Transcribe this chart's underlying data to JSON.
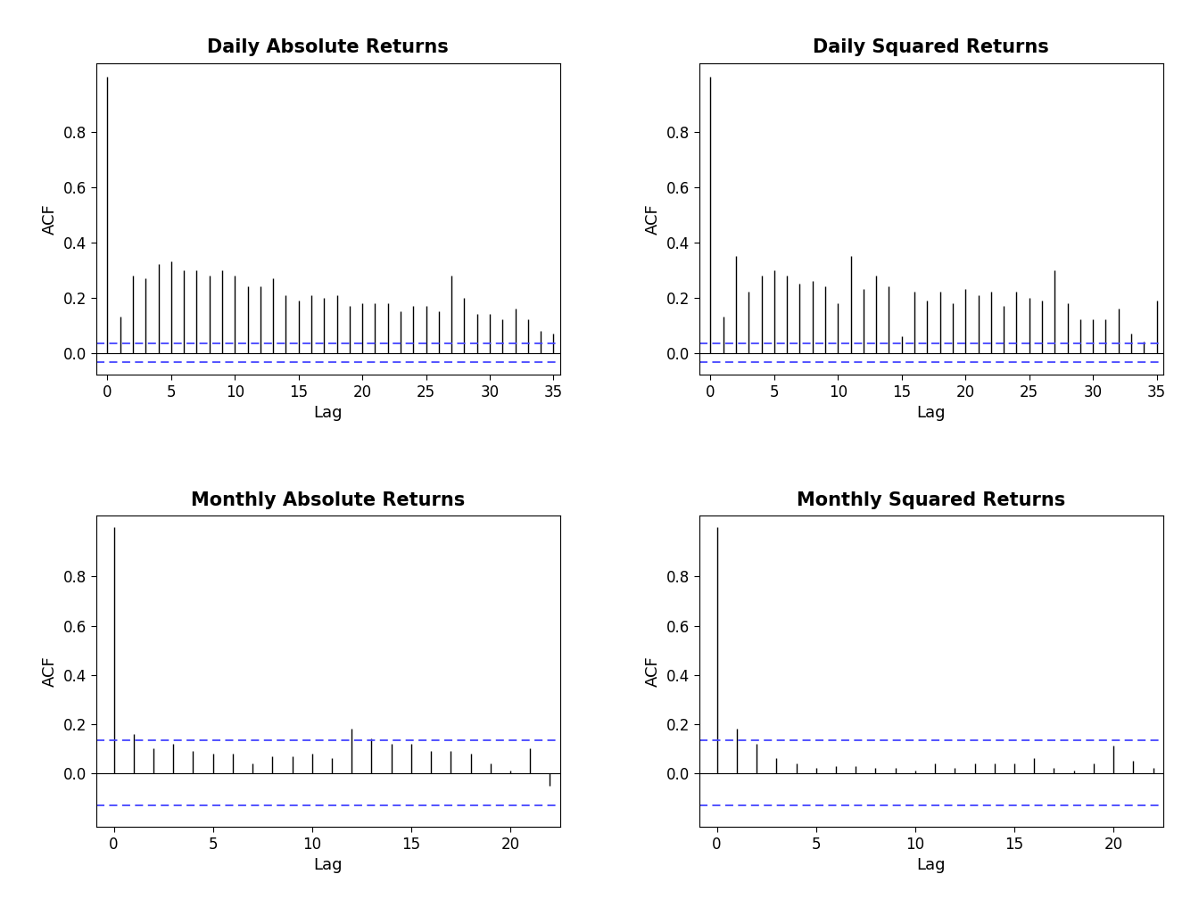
{
  "titles": [
    "Daily Absolute Returns",
    "Daily Squared Returns",
    "Monthly Absolute Returns",
    "Monthly Squared Returns"
  ],
  "ylabel": "ACF",
  "xlabel": "Lag",
  "background_color": "#ffffff",
  "bar_color": "#000000",
  "ci_color": "#4444ff",
  "title_fontsize": 15,
  "axis_label_fontsize": 13,
  "tick_fontsize": 12,
  "daily_ylim": [
    -0.08,
    1.05
  ],
  "monthly_ylim": [
    -0.22,
    1.05
  ],
  "daily_ci": 0.033,
  "monthly_ci": 0.132,
  "daily_acf_abs": [
    1.0,
    0.13,
    0.28,
    0.27,
    0.32,
    0.33,
    0.3,
    0.3,
    0.28,
    0.3,
    0.28,
    0.24,
    0.24,
    0.27,
    0.21,
    0.19,
    0.21,
    0.2,
    0.21,
    0.17,
    0.18,
    0.18,
    0.18,
    0.15,
    0.17,
    0.17,
    0.15,
    0.28,
    0.2,
    0.14,
    0.14,
    0.12,
    0.16,
    0.12,
    0.08,
    0.07
  ],
  "daily_acf_sq": [
    1.0,
    0.13,
    0.35,
    0.22,
    0.28,
    0.3,
    0.28,
    0.25,
    0.26,
    0.24,
    0.18,
    0.35,
    0.23,
    0.28,
    0.24,
    0.06,
    0.22,
    0.19,
    0.22,
    0.18,
    0.23,
    0.21,
    0.22,
    0.17,
    0.22,
    0.2,
    0.19,
    0.3,
    0.18,
    0.12,
    0.12,
    0.12,
    0.16,
    0.07,
    0.04,
    0.19
  ],
  "monthly_acf_abs": [
    1.0,
    0.16,
    0.1,
    0.12,
    0.09,
    0.08,
    0.08,
    0.04,
    0.07,
    0.07,
    0.08,
    0.06,
    0.18,
    0.14,
    0.12,
    0.12,
    0.09,
    0.09,
    0.08,
    0.04,
    0.01,
    0.1,
    -0.05
  ],
  "monthly_acf_sq": [
    1.0,
    0.18,
    0.12,
    0.06,
    0.04,
    0.02,
    0.03,
    0.03,
    0.02,
    0.02,
    0.01,
    0.04,
    0.02,
    0.04,
    0.04,
    0.04,
    0.06,
    0.02,
    0.01,
    0.04,
    0.11,
    0.05,
    0.02
  ],
  "daily_yticks": [
    0.0,
    0.2,
    0.4,
    0.6,
    0.8
  ],
  "monthly_yticks": [
    0.0,
    0.2,
    0.4,
    0.6,
    0.8
  ],
  "daily_xticks": [
    0,
    5,
    10,
    15,
    20,
    25,
    30,
    35
  ],
  "monthly_xticks": [
    0,
    5,
    10,
    15,
    20
  ]
}
